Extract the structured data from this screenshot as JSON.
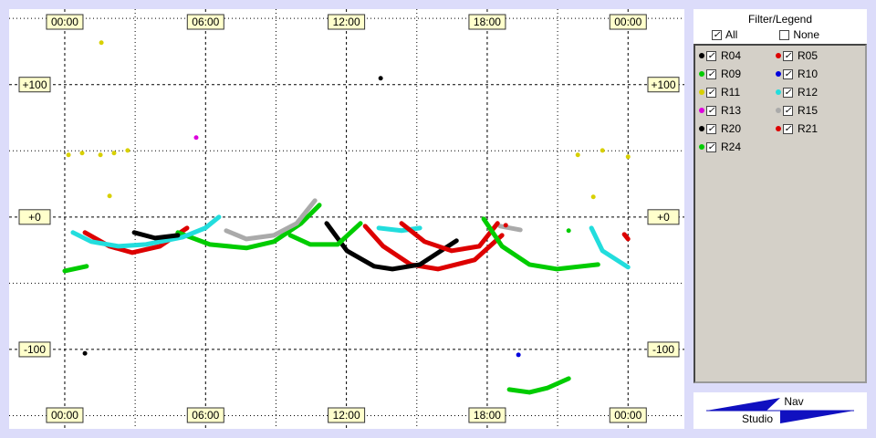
{
  "chart_data": {
    "type": "trace",
    "xlim": [
      -2.37,
      26.4
    ],
    "ylim": [
      -160,
      157
    ],
    "xticks": [
      {
        "value": 0,
        "label": "00:00"
      },
      {
        "value": 6,
        "label": "06:00"
      },
      {
        "value": 12,
        "label": "12:00"
      },
      {
        "value": 18,
        "label": "18:00"
      },
      {
        "value": 24,
        "label": "00:00"
      }
    ],
    "minor_xticks": [
      3,
      9,
      15,
      21
    ],
    "yticks": [
      {
        "value": -100,
        "label": "-100"
      },
      {
        "value": 0,
        "label": "+0"
      },
      {
        "value": 100,
        "label": "+100"
      }
    ],
    "minor_yticks": [
      -150,
      -50,
      50,
      150
    ],
    "grid": true,
    "series": [
      {
        "name": "R04",
        "color": "#000000",
        "x": [
          0.86,
          null,
          13.46
        ],
        "values": [
          -103,
          null,
          104.8
        ]
      },
      {
        "name": "R05",
        "color": "#dd0000",
        "x": [
          0.86,
          1.91,
          2.88,
          4.05,
          5.21,
          null,
          12.8,
          13.57,
          14.74,
          15.91,
          17.46,
          18.63
        ],
        "values": [
          -11.7,
          -22.1,
          -26.9,
          -22.1,
          -8.3,
          null,
          -6.9,
          -22.1,
          -35.9,
          -39.3,
          -32.4,
          -13.8
        ]
      },
      {
        "name": "R09",
        "color": "#00cc00",
        "x": [
          0,
          0.93,
          null,
          4.82,
          6.18,
          7.74,
          8.91,
          10.07,
          10.85
        ],
        "values": [
          -40.7,
          -37.2,
          null,
          -11.7,
          -20.7,
          -23.4,
          -18.6,
          -4.8,
          8.97
        ]
      },
      {
        "name": "R10",
        "color": "#0000dd",
        "x": [
          19.33
        ],
        "values": [
          -104.1
        ]
      },
      {
        "name": "R11",
        "color": "#d8d000",
        "x": [
          0.16,
          null,
          0.74,
          null,
          1.52,
          null,
          2.1,
          null,
          2.68,
          null,
          1.56,
          null,
          1.91,
          null,
          21.86,
          null,
          22.91,
          null,
          24,
          null,
          22.52
        ],
        "values": [
          46.9,
          null,
          48.3,
          null,
          46.9,
          null,
          48.3,
          null,
          50.3,
          null,
          131.7,
          null,
          15.9,
          null,
          46.9,
          null,
          50.3,
          null,
          45.5,
          null,
          15.2
        ]
      },
      {
        "name": "R12",
        "color": "#22dddd",
        "x": [
          0.35,
          1.13,
          2.29,
          3.46,
          5.02,
          5.99,
          6.57,
          null,
          13.38,
          14.35,
          15.13,
          null,
          22.44,
          22.91,
          24
        ],
        "values": [
          -11.7,
          -18.6,
          -22.1,
          -20.7,
          -15.2,
          -8.3,
          0,
          null,
          -8.3,
          -10.3,
          -8.3,
          null,
          -8.3,
          -25.5,
          -37.9
        ]
      },
      {
        "name": "R13",
        "color": "#dd00dd",
        "x": [
          5.6
        ],
        "values": [
          60
        ]
      },
      {
        "name": "R15",
        "color": "#aaaaaa",
        "x": [
          6.88,
          7.74,
          8.91,
          9.88,
          10.66,
          null,
          18.55,
          19.41
        ],
        "values": [
          -10.3,
          -16.6,
          -13.8,
          -4.8,
          12.4,
          null,
          -6.9,
          -9.7
        ]
      },
      {
        "name": "R20",
        "color": "#000000",
        "x": [
          2.96,
          3.85,
          4.82,
          null,
          11.16,
          12.02,
          13.18,
          13.96,
          15.13,
          16.69
        ],
        "values": [
          -11.7,
          -15.9,
          -13.8,
          null,
          -4.8,
          -25.5,
          -37.2,
          -39.3,
          -35.9,
          -17.9
        ]
      },
      {
        "name": "R21",
        "color": "#dd0000",
        "x": [
          14.35,
          15.33,
          16.49,
          17.66,
          18.44,
          null,
          18.79,
          null,
          23.84,
          24
        ],
        "values": [
          -4.8,
          -18.6,
          -25.5,
          -22.1,
          -4.8,
          null,
          -6.2,
          null,
          -13.1,
          -16.6
        ]
      },
      {
        "name": "R24",
        "color": "#00cc00",
        "x": [
          9.61,
          10.46,
          11.63,
          12.6,
          null,
          17.85,
          18.63,
          19.8,
          20.97,
          22.72,
          null,
          18.94,
          19.8,
          20.58,
          21.47,
          null,
          21.47
        ],
        "values": [
          -13.8,
          -20.7,
          -20.7,
          -4.8,
          null,
          -1.4,
          -22.1,
          -35.9,
          -39.3,
          -35.9,
          null,
          -130.3,
          -132.4,
          -129,
          -122,
          null,
          -10.3
        ]
      }
    ]
  },
  "legend_title": "Filter/Legend",
  "filter_all": "All",
  "filter_none": "None",
  "logo": {
    "top": "Nav",
    "bottom": "Studio"
  }
}
